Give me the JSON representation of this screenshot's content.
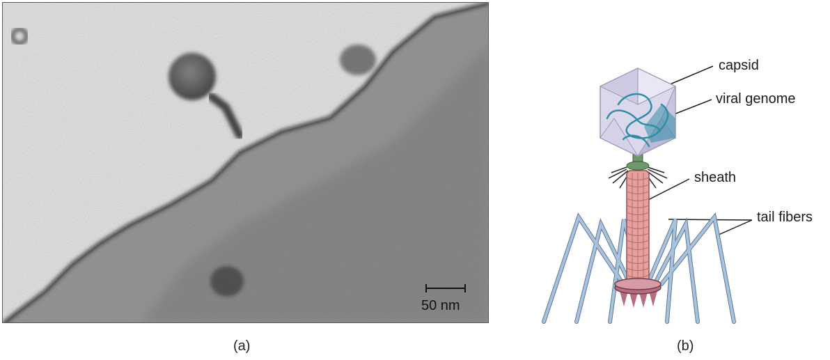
{
  "micrograph": {
    "scale_bar_label": "50 nm",
    "panel_label": "(a)"
  },
  "diagram": {
    "panel_label": "(b)",
    "labels": {
      "capsid": "capsid",
      "viral_genome": "viral genome",
      "sheath": "sheath",
      "tail_fibers": "tail fibers"
    },
    "colors": {
      "capsid_fill": "#dcd8ec",
      "capsid_edge": "#9a96b4",
      "genome": "#2f8ea5",
      "collar": "#6e9a6b",
      "sheath": "#e7a0a0",
      "baseplate": "#b76d7e",
      "fiber": "#a9c2dd",
      "fiber_edge": "#5f7894"
    }
  }
}
